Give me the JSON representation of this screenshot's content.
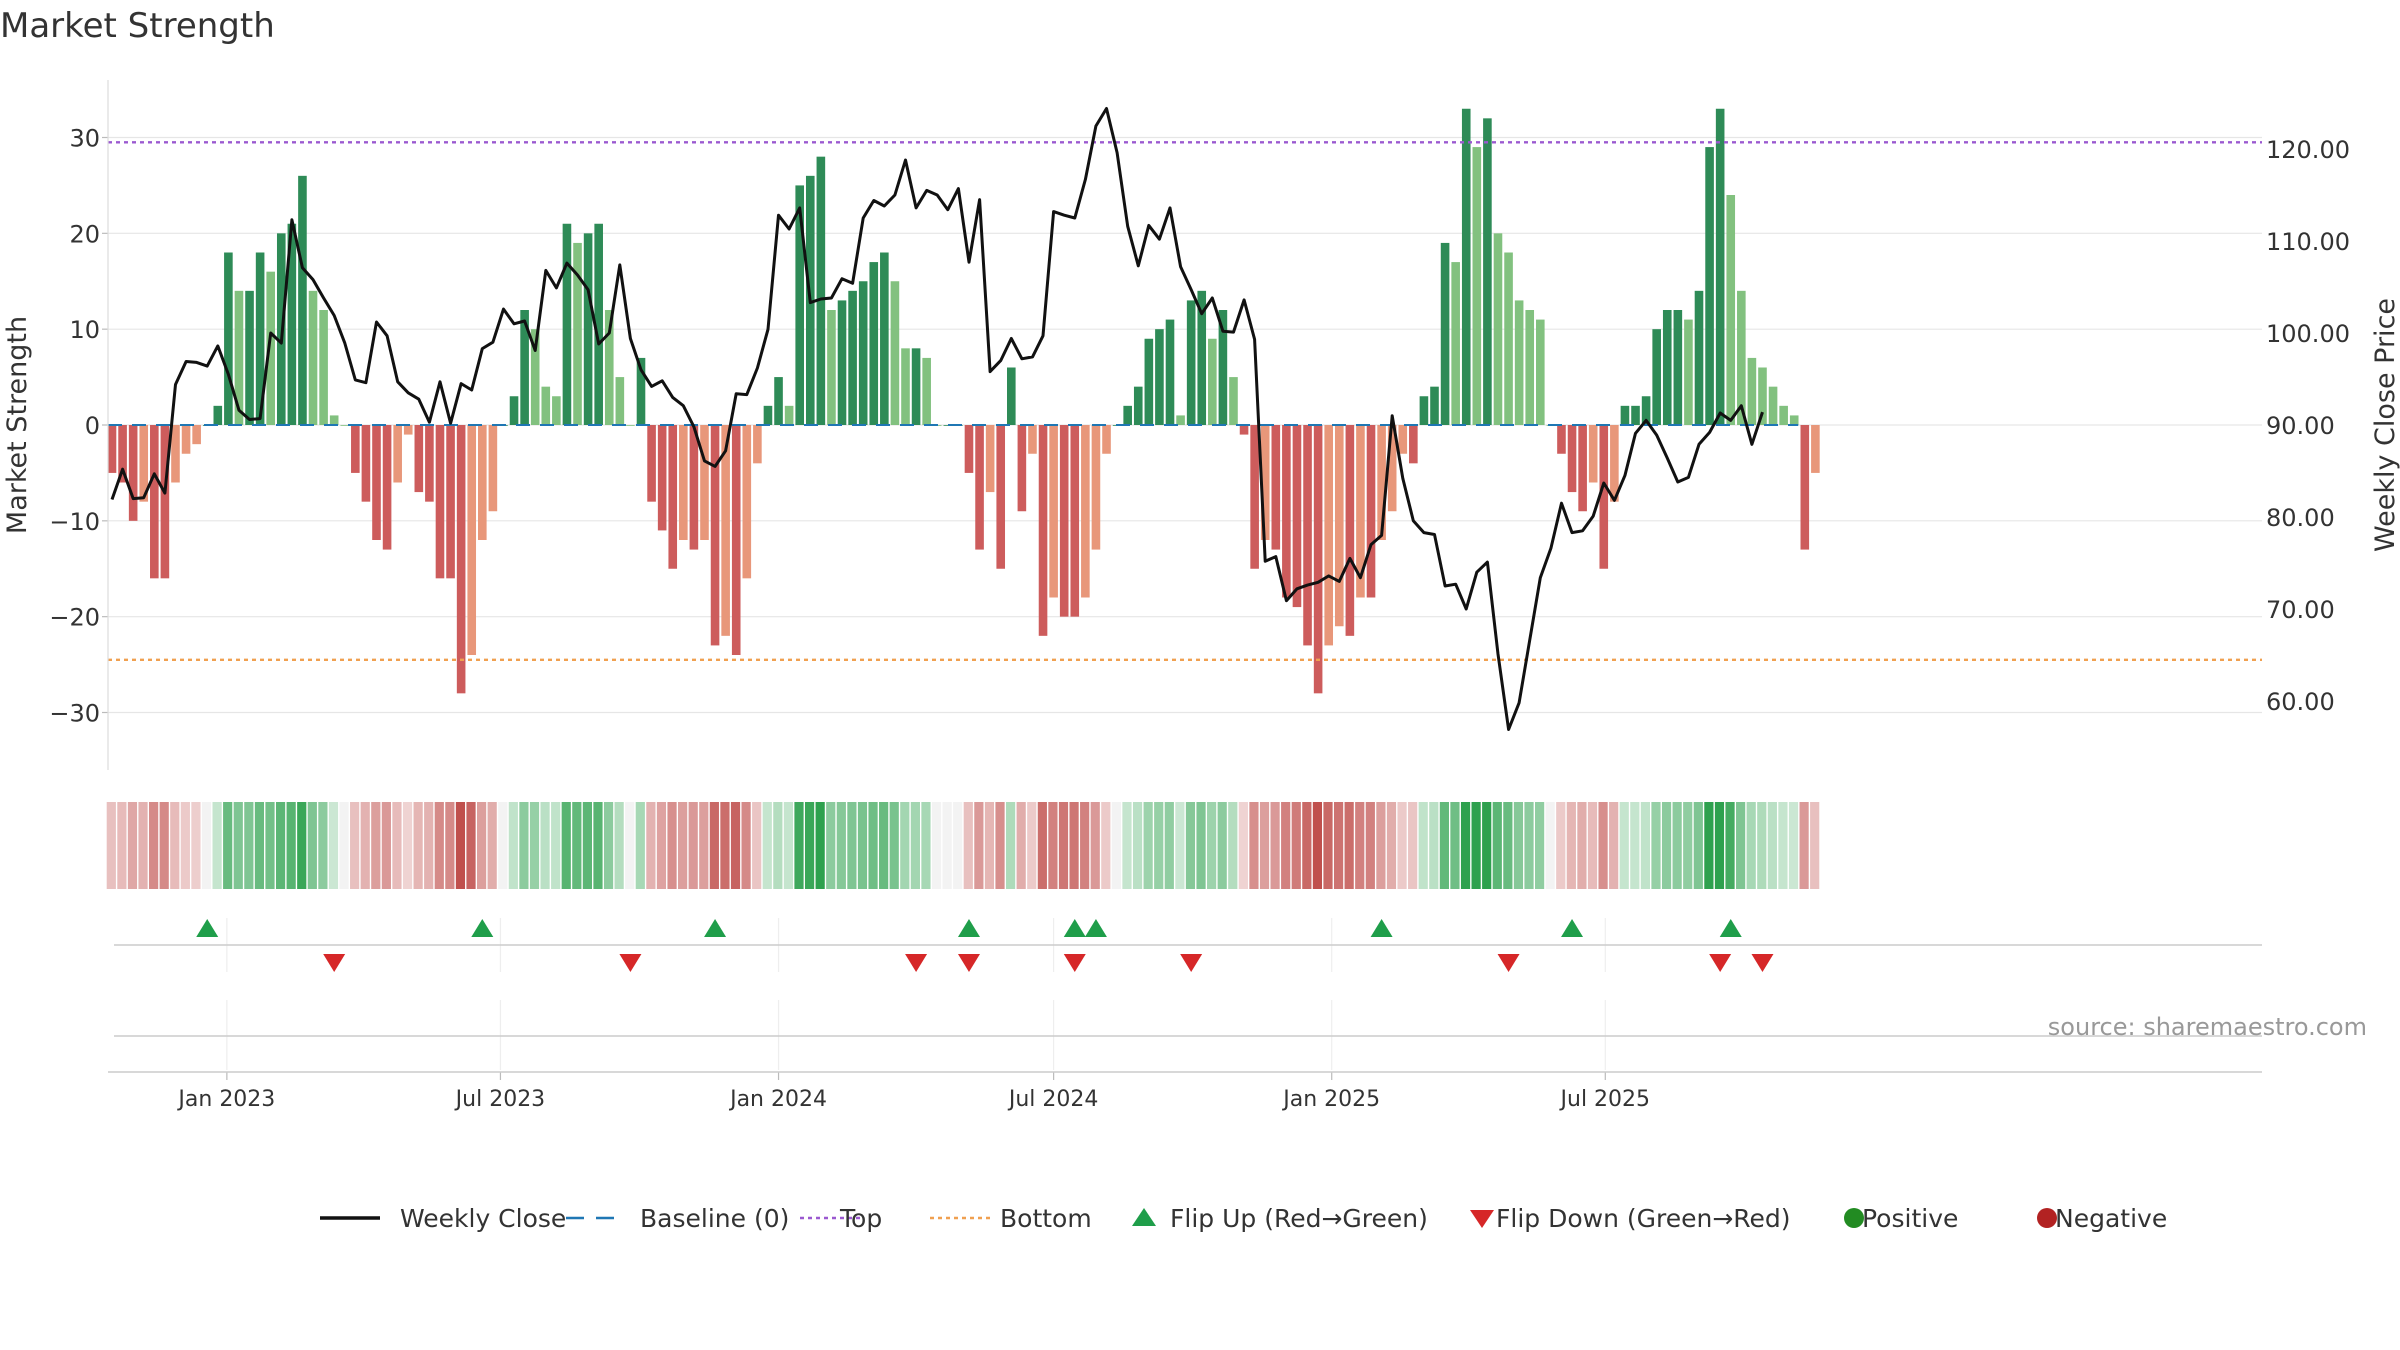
{
  "chart_data": {
    "type": "bar",
    "title": "Market Strength",
    "ylabel_left": "Market Strength",
    "ylabel_right": "Weekly Close Price",
    "source": "source: sharemaestro.com",
    "ylim_left": [
      -36,
      36
    ],
    "ylim_right": [
      52.5,
      127.5
    ],
    "yticks_left": [
      "30",
      "20",
      "10",
      "0",
      "−10",
      "−20",
      "−30"
    ],
    "yticks_left_values": [
      30,
      20,
      10,
      0,
      -10,
      -20,
      -30
    ],
    "yticks_right": [
      "120.00",
      "110.00",
      "100.00",
      "90.00",
      "80.00",
      "70.00",
      "60.00"
    ],
    "yticks_right_values": [
      120,
      110,
      100,
      90,
      80,
      70,
      60
    ],
    "top_level": 29.5,
    "bottom_level": -24.5,
    "x_start": "2022-10-17",
    "week_count": 160,
    "xtick_labels": [
      "Jan 2023",
      "Jul 2023",
      "Jan 2024",
      "Jul 2024",
      "Jan 2025",
      "Jul 2025"
    ],
    "xtick_dates": [
      "2023-01-01",
      "2023-07-01",
      "2024-01-01",
      "2024-07-01",
      "2025-01-01",
      "2025-07-01"
    ],
    "strength": [
      -5,
      -6,
      -10,
      -8,
      -16,
      -16,
      -6,
      -3,
      -2,
      0,
      2,
      18,
      14,
      14,
      18,
      16,
      20,
      21,
      26,
      14,
      12,
      1,
      0,
      -5,
      -8,
      -12,
      -13,
      -6,
      -1,
      -7,
      -8,
      -16,
      -16,
      -28,
      -24,
      -12,
      -9,
      0,
      3,
      12,
      10,
      4,
      3,
      21,
      19,
      20,
      21,
      12,
      5,
      0,
      7,
      -8,
      -11,
      -15,
      -12,
      -13,
      -12,
      -23,
      -22,
      -24,
      -16,
      -4,
      2,
      5,
      2,
      25,
      26,
      28,
      12,
      13,
      14,
      15,
      17,
      18,
      15,
      8,
      8,
      7,
      0,
      0,
      0,
      -5,
      -13,
      -7,
      -15,
      6,
      -9,
      -3,
      -22,
      -18,
      -20,
      -20,
      -18,
      -13,
      -3,
      0,
      2,
      4,
      9,
      10,
      11,
      1,
      13,
      14,
      9,
      12,
      5,
      -1,
      -15,
      -12,
      -13,
      -18,
      -19,
      -23,
      -28,
      -23,
      -21,
      -22,
      -18,
      -18,
      -12,
      -9,
      -3,
      -4,
      3,
      4,
      19,
      17,
      33,
      29,
      32,
      20,
      18,
      13,
      12,
      11,
      0,
      -3,
      -7,
      -9,
      -6,
      -15,
      -8,
      2,
      2,
      3,
      10,
      12,
      12,
      11,
      14,
      29,
      33,
      24,
      14,
      7,
      6,
      4,
      2,
      1,
      -13,
      -5
    ],
    "weekly_close": [
      81.9,
      85.2,
      82.0,
      82.1,
      84.7,
      82.6,
      94.4,
      96.9,
      96.8,
      96.4,
      98.6,
      95.5,
      91.6,
      90.6,
      90.7,
      100.0,
      98.9,
      112.3,
      107.1,
      105.8,
      103.8,
      101.9,
      98.9,
      94.9,
      94.6,
      101.2,
      99.7,
      94.7,
      93.5,
      92.8,
      90.3,
      94.7,
      90.2,
      94.5,
      93.8,
      98.3,
      99.0,
      102.6,
      101.0,
      101.3,
      98.1,
      106.8,
      104.9,
      107.6,
      106.3,
      104.7,
      98.8,
      100.0,
      107.4,
      99.4,
      96.0,
      94.2,
      94.8,
      93.0,
      92.1,
      89.8,
      86.1,
      85.5,
      87.2,
      93.4,
      93.3,
      96.2,
      100.4,
      112.8,
      111.3,
      113.6,
      103.3,
      103.7,
      103.8,
      105.9,
      105.4,
      112.5,
      114.4,
      113.8,
      115.0,
      118.8,
      113.6,
      115.5,
      115.0,
      113.4,
      115.7,
      107.7,
      114.5,
      95.8,
      97.0,
      99.4,
      97.2,
      97.4,
      99.7,
      113.2,
      112.8,
      112.5,
      116.7,
      122.5,
      124.4,
      119.6,
      111.6,
      107.3,
      111.7,
      110.2,
      113.6,
      107.2,
      104.7,
      102.1,
      103.8,
      100.2,
      100.1,
      103.6,
      99.3,
      75.2,
      75.7,
      70.9,
      72.2,
      72.6,
      72.9,
      73.6,
      73.0,
      75.5,
      73.4,
      77.0,
      78.0,
      91.0,
      84.2,
      79.6,
      78.3,
      78.1,
      72.5,
      72.7,
      70.0,
      74.0,
      75.1,
      65.1,
      56.9,
      59.8,
      66.6,
      73.4,
      76.6,
      81.5,
      78.3,
      78.5,
      80.1,
      83.7,
      81.8,
      84.5,
      89.1,
      90.5,
      88.9,
      86.4,
      83.8,
      84.3,
      87.9,
      89.2,
      91.3,
      90.5,
      92.1,
      87.9,
      91.4
    ],
    "baseline_label": "Baseline (0)",
    "flip_up_weeks": [
      9,
      35,
      57,
      81,
      91,
      93,
      120,
      138,
      153
    ],
    "flip_down_weeks": [
      21,
      49,
      76,
      81,
      91,
      102,
      132,
      152,
      156
    ],
    "legend": [
      {
        "label": "Weekly Close",
        "kind": "line",
        "color": "#111111"
      },
      {
        "label": "Baseline (0)",
        "kind": "dash",
        "color": "#1f77b4"
      },
      {
        "label": "Top",
        "kind": "dot",
        "color": "#9b59d0"
      },
      {
        "label": "Bottom",
        "kind": "dot",
        "color": "#f0a050"
      },
      {
        "label": "Flip Up (Red→Green)",
        "kind": "tri-up",
        "color": "#1f9e4a"
      },
      {
        "label": "Flip Down (Green→Red)",
        "kind": "tri-down",
        "color": "#d62728"
      },
      {
        "label": "Positive",
        "kind": "circle",
        "color": "#228b22"
      },
      {
        "label": "Negative",
        "kind": "circle",
        "color": "#b22222"
      }
    ],
    "colors": {
      "pos_dark": "#2e8b57",
      "pos_light": "#82c17f",
      "neg_dark": "#cd5c5c",
      "neg_light": "#e8977a",
      "line": "#111111",
      "baseline": "#1f77b4",
      "top": "#9b59d0",
      "bottom": "#f0a050",
      "up": "#1f9e4a",
      "down": "#d62728",
      "grid": "#e6e6e6",
      "axis": "#cccccc"
    }
  }
}
